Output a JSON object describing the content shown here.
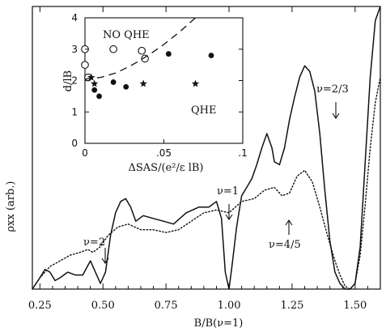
{
  "chart_data": [
    {
      "type": "line",
      "title": "",
      "xlabel": "B/B(ν=1)",
      "ylabel": "ρxx (arb.)",
      "xlim": [
        0.22,
        1.6
      ],
      "ylim": [
        0,
        1.0
      ],
      "x_ticks": [
        "0.25",
        "0.50",
        "0.75",
        "1.00",
        "1.25",
        "1.50"
      ],
      "x_tick_values": [
        0.25,
        0.5,
        0.75,
        1.0,
        1.25,
        1.5
      ],
      "grid": false,
      "series": [
        {
          "style": "solid",
          "x": [
            0.22,
            0.25,
            0.27,
            0.29,
            0.31,
            0.33,
            0.36,
            0.39,
            0.42,
            0.45,
            0.47,
            0.49,
            0.51,
            0.53,
            0.55,
            0.57,
            0.59,
            0.61,
            0.63,
            0.66,
            0.7,
            0.74,
            0.78,
            0.83,
            0.88,
            0.92,
            0.95,
            0.97,
            0.985,
            1.0,
            1.01,
            1.03,
            1.05,
            1.07,
            1.09,
            1.11,
            1.13,
            1.15,
            1.17,
            1.18,
            1.2,
            1.22,
            1.24,
            1.26,
            1.28,
            1.3,
            1.32,
            1.34,
            1.36,
            1.38,
            1.4,
            1.42,
            1.44,
            1.46,
            1.48,
            1.5,
            1.52,
            1.54,
            1.56,
            1.58,
            1.6
          ],
          "y": [
            0.0,
            0.04,
            0.07,
            0.06,
            0.03,
            0.04,
            0.06,
            0.05,
            0.05,
            0.1,
            0.06,
            0.02,
            0.06,
            0.19,
            0.27,
            0.31,
            0.32,
            0.29,
            0.24,
            0.26,
            0.25,
            0.24,
            0.23,
            0.27,
            0.29,
            0.29,
            0.31,
            0.25,
            0.06,
            0.0,
            0.07,
            0.22,
            0.33,
            0.36,
            0.39,
            0.44,
            0.5,
            0.55,
            0.5,
            0.45,
            0.44,
            0.5,
            0.6,
            0.68,
            0.75,
            0.79,
            0.77,
            0.7,
            0.55,
            0.35,
            0.17,
            0.06,
            0.02,
            0.0,
            0.0,
            0.02,
            0.15,
            0.45,
            0.75,
            0.95,
            1.0
          ]
        },
        {
          "style": "dotted",
          "x": [
            0.22,
            0.25,
            0.29,
            0.33,
            0.37,
            0.41,
            0.44,
            0.46,
            0.49,
            0.52,
            0.56,
            0.6,
            0.65,
            0.7,
            0.75,
            0.8,
            0.85,
            0.9,
            0.95,
            1.0,
            1.05,
            1.1,
            1.14,
            1.18,
            1.21,
            1.24,
            1.27,
            1.3,
            1.33,
            1.36,
            1.39,
            1.42,
            1.44,
            1.46,
            1.48,
            1.5,
            1.52,
            1.54,
            1.56,
            1.58,
            1.6
          ],
          "y": [
            0.0,
            0.04,
            0.08,
            0.1,
            0.12,
            0.13,
            0.14,
            0.13,
            0.15,
            0.19,
            0.22,
            0.23,
            0.21,
            0.21,
            0.2,
            0.21,
            0.24,
            0.27,
            0.28,
            0.27,
            0.31,
            0.32,
            0.35,
            0.36,
            0.33,
            0.34,
            0.4,
            0.42,
            0.38,
            0.29,
            0.19,
            0.1,
            0.05,
            0.01,
            0.0,
            0.02,
            0.12,
            0.3,
            0.5,
            0.66,
            0.75
          ]
        }
      ],
      "annotations": [
        {
          "text": "ν=2/3",
          "x": 1.31,
          "y": 0.76
        },
        {
          "text": "ν=1",
          "x": 0.99,
          "y": 0.33
        },
        {
          "text": "ν=2",
          "x": 0.5,
          "y": 0.15
        },
        {
          "text": "ν=4/5",
          "x": 1.21,
          "y": 0.36
        }
      ]
    },
    {
      "type": "scatter",
      "title": "",
      "xlabel": "ΔSAS/(e²/ε lB)",
      "ylabel": "d/lB",
      "xlim": [
        0,
        0.1
      ],
      "ylim": [
        0,
        4
      ],
      "x_ticks": [
        "0",
        ".05",
        ".1"
      ],
      "x_tick_values": [
        0,
        0.05,
        0.1
      ],
      "y_ticks": [
        "0",
        "1",
        "2",
        "3",
        "4"
      ],
      "y_tick_values": [
        0,
        1,
        2,
        3,
        4
      ],
      "region_labels": [
        "NO QHE",
        "QHE"
      ],
      "series": [
        {
          "marker": "open-circle",
          "x": [
            0.0,
            0.0,
            0.002,
            0.018,
            0.036,
            0.038
          ],
          "y": [
            3.0,
            2.5,
            2.1,
            3.0,
            2.95,
            2.7
          ]
        },
        {
          "marker": "filled-circle",
          "x": [
            0.006,
            0.009,
            0.018,
            0.026,
            0.053,
            0.08
          ],
          "y": [
            1.7,
            1.5,
            1.95,
            1.8,
            2.85,
            2.8
          ]
        },
        {
          "marker": "star",
          "x": [
            0.004,
            0.006,
            0.037,
            0.07
          ],
          "y": [
            2.1,
            1.9,
            1.9,
            1.9
          ]
        },
        {
          "style": "dashed",
          "x": [
            0.0,
            0.01,
            0.02,
            0.03,
            0.04,
            0.05,
            0.06,
            0.07
          ],
          "y": [
            2.05,
            2.1,
            2.25,
            2.5,
            2.8,
            3.15,
            3.55,
            4.0
          ]
        }
      ]
    }
  ]
}
